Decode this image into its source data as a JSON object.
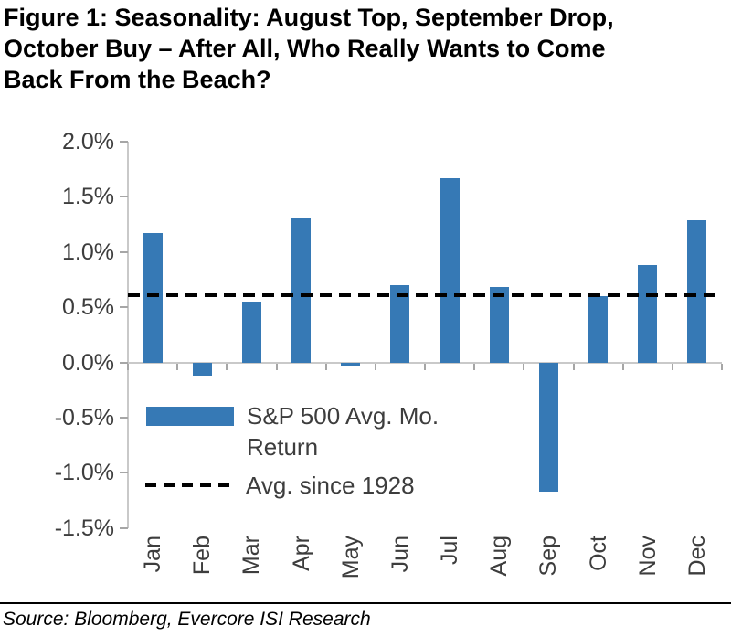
{
  "title": "Figure 1: Seasonality: August Top, September Drop, October Buy – After All, Who Really Wants to Come Back From the Beach?",
  "title_lines": [
    "Figure 1: Seasonality: August Top, September Drop,",
    "October Buy – After All, Who Really Wants to Come",
    "Back From the Beach?"
  ],
  "source": "Source: Bloomberg, Evercore ISI Research",
  "colors": {
    "bar": "#3679B5",
    "avg_line": "#000000",
    "axis": "#C9C9C9",
    "tick": "#A6A6A6",
    "text": "#3D3D3D"
  },
  "chart_data": {
    "type": "bar",
    "title": "",
    "xlabel": "",
    "ylabel": "",
    "unit": "%",
    "grid": false,
    "legend_position": "inside-lower-left",
    "categories": [
      "Jan",
      "Feb",
      "Mar",
      "Apr",
      "May",
      "Jun",
      "Jul",
      "Aug",
      "Sep",
      "Oct",
      "Nov",
      "Dec"
    ],
    "series": [
      {
        "name": "S&P 500 Avg. Mo. Return",
        "type": "bar",
        "color": "#3679B5",
        "values": [
          1.17,
          -0.12,
          0.55,
          1.31,
          -0.04,
          0.7,
          1.67,
          0.68,
          -1.17,
          0.6,
          0.88,
          1.29
        ]
      },
      {
        "name": "Avg. since 1928",
        "type": "dashed-horizontal-line",
        "color": "#000000",
        "value": 0.61
      }
    ],
    "ylim": [
      -1.5,
      2.0
    ],
    "y_ticks": {
      "labels": [
        "2.0%",
        "1.5%",
        "1.0%",
        "0.5%",
        "0.0%",
        "-0.5%",
        "-1.0%",
        "-1.5%"
      ],
      "values": [
        2.0,
        1.5,
        1.0,
        0.5,
        0.0,
        -0.5,
        -1.0,
        -1.5
      ]
    }
  }
}
